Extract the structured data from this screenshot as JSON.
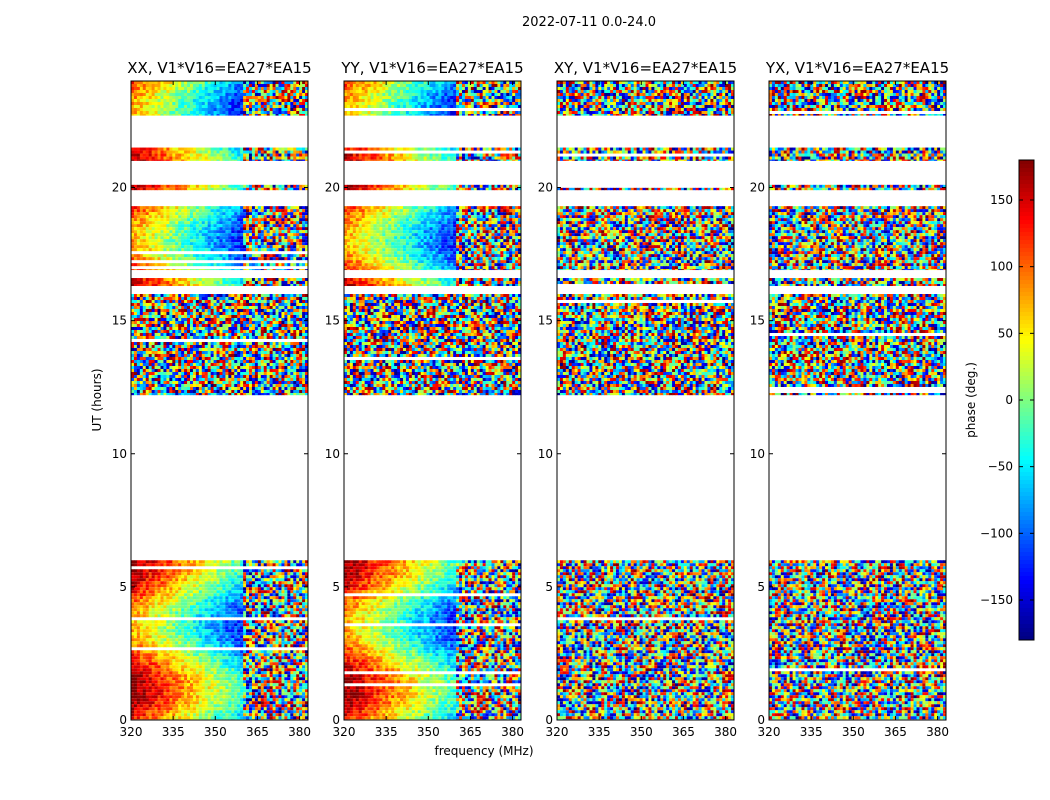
{
  "suptitle": "2022-07-11 0.0-24.0",
  "colorbar": {
    "label": "phase (deg.)",
    "min": -180,
    "max": 180,
    "ticks": [
      -150,
      -100,
      -50,
      0,
      50,
      100,
      150
    ],
    "tick_labels": [
      "−150",
      "−100",
      "−50",
      "0",
      "50",
      "100",
      "150"
    ],
    "colormap": "jet"
  },
  "chart_data": [
    {
      "type": "heatmap",
      "title": "XX, V1*V16=EA27*EA15",
      "xlabel": "",
      "ylabel": "UT (hours)",
      "xlim": [
        320,
        383
      ],
      "ylim": [
        0,
        24
      ],
      "xticks": [
        320,
        335,
        350,
        365,
        380
      ],
      "yticks": [
        0,
        5,
        10,
        15,
        20
      ],
      "mode": "parallel",
      "data_ut_ranges": [
        [
          0,
          6.0
        ],
        [
          12.2,
          16.0
        ],
        [
          16.3,
          16.6
        ],
        [
          16.9,
          19.3
        ],
        [
          19.9,
          20.1
        ],
        [
          21.0,
          21.5
        ],
        [
          22.7,
          24.0
        ]
      ]
    },
    {
      "type": "heatmap",
      "title": "YY, V1*V16=EA27*EA15",
      "xlabel": "frequency (MHz)",
      "ylabel": "",
      "xlim": [
        320,
        383
      ],
      "ylim": [
        0,
        24
      ],
      "xticks": [
        320,
        335,
        350,
        365,
        380
      ],
      "yticks": [
        0,
        5,
        10,
        15,
        20
      ],
      "mode": "parallel",
      "data_ut_ranges": [
        [
          0,
          6.0
        ],
        [
          12.2,
          16.0
        ],
        [
          16.3,
          16.6
        ],
        [
          16.9,
          19.3
        ],
        [
          19.9,
          20.1
        ],
        [
          21.0,
          21.5
        ],
        [
          22.7,
          24.0
        ]
      ]
    },
    {
      "type": "heatmap",
      "title": "XY, V1*V16=EA27*EA15",
      "xlabel": "",
      "ylabel": "",
      "xlim": [
        320,
        383
      ],
      "ylim": [
        0,
        24
      ],
      "xticks": [
        320,
        335,
        350,
        365,
        380
      ],
      "yticks": [
        0,
        5,
        10,
        15,
        20
      ],
      "mode": "cross",
      "data_ut_ranges": [
        [
          0,
          6.0
        ],
        [
          12.2,
          16.0
        ],
        [
          16.3,
          16.6
        ],
        [
          16.9,
          19.3
        ],
        [
          19.9,
          20.1
        ],
        [
          21.0,
          21.5
        ],
        [
          22.7,
          24.0
        ]
      ]
    },
    {
      "type": "heatmap",
      "title": "YX, V1*V16=EA27*EA15",
      "xlabel": "",
      "ylabel": "",
      "xlim": [
        320,
        383
      ],
      "ylim": [
        0,
        24
      ],
      "xticks": [
        320,
        335,
        350,
        365,
        380
      ],
      "yticks": [
        0,
        5,
        10,
        15,
        20
      ],
      "mode": "cross",
      "data_ut_ranges": [
        [
          0,
          6.0
        ],
        [
          12.2,
          16.0
        ],
        [
          16.3,
          16.6
        ],
        [
          16.9,
          19.3
        ],
        [
          19.9,
          20.1
        ],
        [
          21.0,
          21.5
        ],
        [
          22.7,
          24.0
        ]
      ]
    }
  ]
}
